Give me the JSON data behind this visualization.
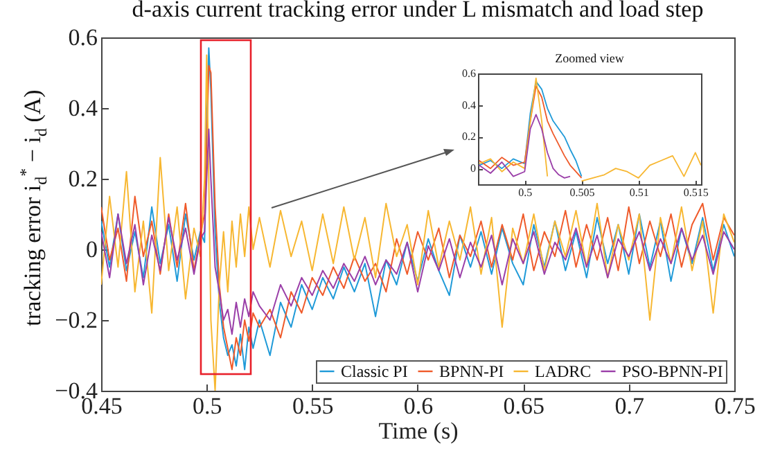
{
  "chart_data": [
    {
      "type": "line",
      "title": "d-axis current tracking error under L mismatch and load step",
      "xlabel": "Time (s)",
      "ylabel": "tracking error i$_{d}$$^{*}$ − i$_{d}$ (A)",
      "x": [
        0.45,
        0.454,
        0.458,
        0.462,
        0.466,
        0.47,
        0.474,
        0.478,
        0.482,
        0.486,
        0.49,
        0.494,
        0.497,
        0.499,
        0.5,
        0.501,
        0.502,
        0.504,
        0.506,
        0.508,
        0.51,
        0.512,
        0.514,
        0.516,
        0.518,
        0.52,
        0.522,
        0.525,
        0.53,
        0.535,
        0.54,
        0.545,
        0.55,
        0.555,
        0.56,
        0.565,
        0.57,
        0.575,
        0.58,
        0.585,
        0.59,
        0.595,
        0.6,
        0.605,
        0.61,
        0.615,
        0.62,
        0.625,
        0.63,
        0.635,
        0.64,
        0.645,
        0.65,
        0.655,
        0.66,
        0.665,
        0.67,
        0.675,
        0.68,
        0.685,
        0.69,
        0.695,
        0.7,
        0.705,
        0.71,
        0.715,
        0.72,
        0.725,
        0.73,
        0.735,
        0.74,
        0.745,
        0.75
      ],
      "series": [
        {
          "name": "Classic PI",
          "color": "#1f9ad8",
          "values": [
            0.08,
            -0.05,
            0.1,
            -0.06,
            0.05,
            -0.08,
            0.12,
            -0.04,
            0.07,
            -0.09,
            0.1,
            -0.03,
            0.05,
            0.02,
            0.35,
            0.57,
            0.45,
            0.05,
            -0.15,
            -0.25,
            -0.3,
            -0.27,
            -0.33,
            -0.24,
            -0.34,
            -0.22,
            -0.28,
            -0.2,
            -0.3,
            -0.15,
            -0.22,
            -0.1,
            -0.17,
            -0.08,
            -0.14,
            -0.05,
            -0.12,
            -0.04,
            -0.19,
            -0.03,
            -0.1,
            0.02,
            -0.09,
            0.03,
            -0.06,
            -0.13,
            0.04,
            -0.05,
            0.05,
            -0.07,
            0.06,
            -0.04,
            -0.1,
            0.07,
            -0.05,
            0.08,
            -0.06,
            0.05,
            -0.08,
            0.09,
            -0.04,
            0.07,
            -0.07,
            0.1,
            -0.05,
            0.08,
            -0.09,
            0.06,
            -0.04,
            0.09,
            -0.06,
            0.07,
            -0.02
          ]
        },
        {
          "name": "BPNN-PI",
          "color": "#ef5a2a",
          "values": [
            0.12,
            -0.03,
            0.06,
            -0.09,
            0.15,
            -0.02,
            0.08,
            -0.07,
            0.1,
            -0.05,
            0.13,
            -0.06,
            0.04,
            0.1,
            0.3,
            0.52,
            0.5,
            0.12,
            -0.1,
            -0.22,
            -0.28,
            -0.34,
            -0.25,
            -0.3,
            -0.2,
            -0.26,
            -0.18,
            -0.22,
            -0.17,
            -0.25,
            -0.12,
            -0.18,
            -0.08,
            -0.13,
            -0.05,
            -0.11,
            -0.02,
            -0.09,
            -0.04,
            -0.12,
            0.03,
            -0.07,
            0.05,
            -0.03,
            0.06,
            -0.08,
            0.04,
            -0.02,
            0.08,
            -0.05,
            0.07,
            -0.03,
            0.1,
            -0.06,
            0.05,
            -0.02,
            0.11,
            -0.05,
            0.07,
            -0.03,
            0.09,
            -0.06,
            0.12,
            -0.04,
            0.08,
            -0.02,
            0.1,
            -0.05,
            0.07,
            0.13,
            -0.03,
            0.09,
            0.04
          ]
        },
        {
          "name": "LADRC",
          "color": "#f7b731",
          "values": [
            -0.1,
            0.15,
            -0.05,
            0.22,
            -0.12,
            0.08,
            -0.18,
            0.26,
            -0.06,
            0.12,
            -0.14,
            0.06,
            -0.02,
            0.2,
            0.55,
            0.2,
            -0.2,
            -0.4,
            -0.1,
            0.05,
            -0.12,
            0.08,
            -0.05,
            0.1,
            -0.02,
            0.12,
            0.0,
            0.09,
            -0.05,
            0.11,
            -0.02,
            0.08,
            -0.06,
            0.1,
            -0.04,
            0.12,
            -0.03,
            0.09,
            -0.08,
            0.13,
            -0.02,
            0.07,
            -0.1,
            0.11,
            -0.05,
            0.08,
            -0.03,
            0.12,
            -0.07,
            0.09,
            -0.22,
            0.06,
            -0.04,
            0.1,
            -0.06,
            0.08,
            -0.02,
            0.11,
            -0.05,
            0.13,
            -0.08,
            0.07,
            -0.03,
            0.1,
            -0.2,
            0.09,
            -0.04,
            0.12,
            -0.06,
            0.08,
            -0.18,
            0.1,
            0.02
          ]
        },
        {
          "name": "PSO-BPNN-PI",
          "color": "#9a3ea8",
          "values": [
            0.05,
            -0.08,
            0.1,
            -0.04,
            0.07,
            -0.1,
            0.04,
            -0.06,
            0.09,
            -0.03,
            0.06,
            -0.07,
            0.03,
            0.05,
            0.2,
            0.34,
            0.2,
            -0.05,
            -0.12,
            -0.2,
            -0.17,
            -0.24,
            -0.15,
            -0.22,
            -0.14,
            -0.19,
            -0.12,
            -0.16,
            -0.2,
            -0.1,
            -0.16,
            -0.08,
            -0.13,
            -0.06,
            -0.11,
            -0.04,
            -0.09,
            -0.02,
            -0.1,
            -0.03,
            -0.07,
            0.02,
            -0.12,
            0.01,
            -0.06,
            0.03,
            -0.08,
            0.02,
            -0.05,
            0.04,
            -0.1,
            0.03,
            -0.04,
            0.05,
            -0.07,
            0.02,
            -0.03,
            0.06,
            -0.05,
            0.04,
            -0.08,
            0.03,
            -0.02,
            0.05,
            -0.06,
            0.03,
            -0.04,
            0.06,
            -0.03,
            0.04,
            -0.07,
            0.05,
            0.0
          ]
        }
      ],
      "xlim": [
        0.45,
        0.75
      ],
      "xticks": [
        0.45,
        0.5,
        0.55,
        0.6,
        0.65,
        0.7,
        0.75
      ],
      "ylim": [
        -0.4,
        0.6
      ],
      "yticks": [
        {
          "value": -0.4,
          "label": "−0.4"
        },
        {
          "value": -0.2,
          "label": "−0.2"
        },
        0,
        0.2,
        0.4,
        0.6
      ],
      "legend": "bottom right",
      "grid": false,
      "line_style": "solid"
    },
    {
      "type": "line",
      "title": "Zoomed view",
      "x": [
        0.496,
        0.497,
        0.498,
        0.499,
        0.5,
        0.5005,
        0.501,
        0.5015,
        0.502,
        0.5025,
        0.503,
        0.5035,
        0.504,
        0.5045,
        0.505,
        0.506,
        0.507,
        0.508,
        0.509,
        0.51,
        0.511,
        0.512,
        0.513,
        0.514,
        0.515,
        0.5155
      ],
      "series": [
        {
          "color": "#1f9ad8",
          "values": [
            0.02,
            0.05,
            0.0,
            0.06,
            0.03,
            0.35,
            0.55,
            0.5,
            0.38,
            0.3,
            0.25,
            0.2,
            0.12,
            0.05,
            -0.05,
            null,
            null,
            null,
            null,
            null,
            null,
            null,
            null,
            null,
            null,
            null
          ]
        },
        {
          "color": "#ef5a2a",
          "values": [
            0.05,
            0.0,
            0.07,
            0.02,
            0.04,
            0.3,
            0.52,
            0.45,
            0.3,
            0.22,
            0.15,
            0.08,
            0.02,
            -0.02,
            -0.06,
            null,
            null,
            null,
            null,
            null,
            null,
            null,
            null,
            null,
            null,
            null
          ]
        },
        {
          "color": "#f7b731",
          "values": [
            0.03,
            0.06,
            -0.02,
            0.04,
            0.0,
            0.3,
            0.57,
            0.3,
            -0.05,
            null,
            null,
            null,
            null,
            null,
            -0.08,
            -0.06,
            -0.04,
            0.0,
            -0.02,
            -0.06,
            0.02,
            0.05,
            0.08,
            -0.05,
            0.1,
            0.02
          ]
        },
        {
          "color": "#9a3ea8",
          "values": [
            0.02,
            -0.03,
            0.04,
            -0.05,
            -0.02,
            0.25,
            0.34,
            0.25,
            0.1,
            0.0,
            -0.04,
            -0.06,
            -0.05,
            null,
            null,
            null,
            null,
            null,
            null,
            null,
            null,
            null,
            null,
            null,
            null,
            null
          ]
        }
      ],
      "xlim": [
        0.4959,
        0.5155
      ],
      "xticks": [
        0.5,
        0.505,
        0.51,
        0.515
      ],
      "ylim": [
        -0.1,
        0.6
      ],
      "yticks": [
        0,
        0.2,
        0.4,
        0.6
      ],
      "grid": false,
      "line_style": "solid"
    }
  ]
}
